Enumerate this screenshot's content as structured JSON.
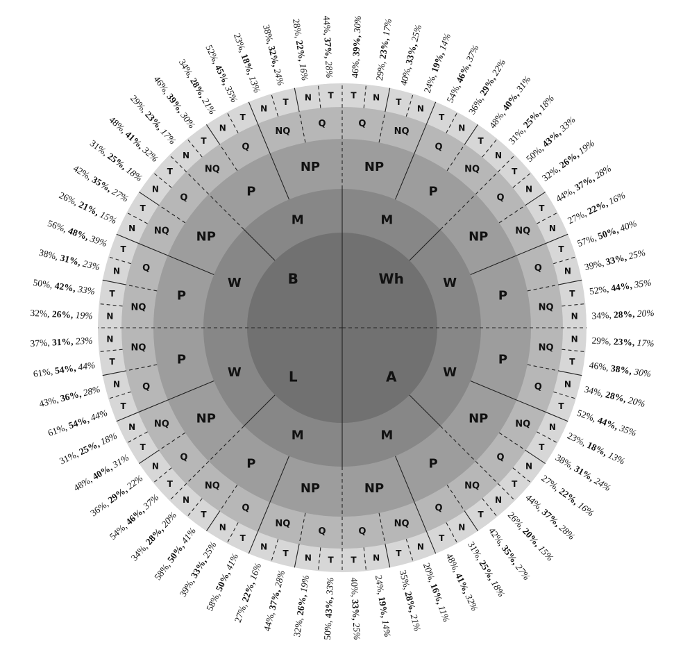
{
  "colors": {
    "center": "#717171",
    "ring1": "#878787",
    "ring2": "#9d9d9d",
    "ring3": "#b7b7b7",
    "ring4": "#d7d7d7",
    "stroke": "#222222"
  },
  "quadrants": [
    {
      "label": "Wh",
      "ring1": [
        "M",
        "W"
      ],
      "ring2": [
        "NP",
        "P",
        "NP",
        "P"
      ],
      "ring3": [
        "Q",
        "NQ",
        "Q",
        "NQ",
        "Q",
        "NQ",
        "Q",
        "NQ"
      ],
      "ring4": [
        "T",
        "N",
        "T",
        "N",
        "T",
        "N",
        "T",
        "N",
        "T",
        "N",
        "T",
        "N",
        "T",
        "N",
        "T",
        "N"
      ]
    },
    {
      "label": "A",
      "ring1": [
        "W",
        "M"
      ],
      "ring2": [
        "P",
        "NP",
        "P",
        "NP"
      ],
      "ring3": [
        "NQ",
        "Q",
        "NQ",
        "Q",
        "NQ",
        "Q",
        "NQ",
        "Q"
      ],
      "ring4": [
        "N",
        "T",
        "N",
        "T",
        "N",
        "T",
        "N",
        "T",
        "N",
        "T",
        "N",
        "T",
        "N",
        "T",
        "N",
        "T"
      ]
    },
    {
      "label": "L",
      "ring1": [
        "M",
        "W"
      ],
      "ring2": [
        "NP",
        "P",
        "NP",
        "P"
      ],
      "ring3": [
        "Q",
        "NQ",
        "Q",
        "NQ",
        "Q",
        "NQ",
        "Q",
        "NQ"
      ],
      "ring4": [
        "T",
        "N",
        "T",
        "N",
        "T",
        "N",
        "T",
        "N",
        "T",
        "N",
        "T",
        "N",
        "T",
        "N",
        "T",
        "N"
      ]
    },
    {
      "label": "B",
      "ring1": [
        "W",
        "M"
      ],
      "ring2": [
        "P",
        "NP",
        "P",
        "NP"
      ],
      "ring3": [
        "NQ",
        "Q",
        "NQ",
        "Q",
        "NQ",
        "Q",
        "NQ",
        "Q"
      ],
      "ring4": [
        "N",
        "T",
        "N",
        "T",
        "N",
        "T",
        "N",
        "T",
        "N",
        "T",
        "N",
        "T",
        "N",
        "T",
        "N",
        "T"
      ]
    }
  ],
  "outer_labels": [
    [
      "46%",
      "39%",
      "30%"
    ],
    [
      "29%",
      "23%",
      "17%"
    ],
    [
      "40%",
      "33%",
      "25%"
    ],
    [
      "24%",
      "19%",
      "14%"
    ],
    [
      "54%",
      "46%",
      "37%"
    ],
    [
      "36%",
      "29%",
      "22%"
    ],
    [
      "48%",
      "40%",
      "31%"
    ],
    [
      "31%",
      "25%",
      "18%"
    ],
    [
      "50%",
      "43%",
      "33%"
    ],
    [
      "32%",
      "26%",
      "19%"
    ],
    [
      "44%",
      "37%",
      "28%"
    ],
    [
      "27%",
      "22%",
      "16%"
    ],
    [
      "57%",
      "50%",
      "40%"
    ],
    [
      "39%",
      "33%",
      "25%"
    ],
    [
      "52%",
      "44%",
      "35%"
    ],
    [
      "34%",
      "28%",
      "20%"
    ],
    [
      "29%",
      "23%",
      "17%"
    ],
    [
      "46%",
      "38%",
      "30%"
    ],
    [
      "34%",
      "28%",
      "20%"
    ],
    [
      "52%",
      "44%",
      "35%"
    ],
    [
      "23%",
      "18%",
      "13%"
    ],
    [
      "38%",
      "31%",
      "24%"
    ],
    [
      "27%",
      "22%",
      "16%"
    ],
    [
      "44%",
      "37%",
      "28%"
    ],
    [
      "26%",
      "20%",
      "15%"
    ],
    [
      "42%",
      "35%",
      "27%"
    ],
    [
      "31%",
      "25%",
      "18%"
    ],
    [
      "48%",
      "41%",
      "32%"
    ],
    [
      "20%",
      "16%",
      "11%"
    ],
    [
      "35%",
      "28%",
      "21%"
    ],
    [
      "24%",
      "19%",
      "14%"
    ],
    [
      "40%",
      "33%",
      "25%"
    ],
    [
      "50%",
      "43%",
      "33%"
    ],
    [
      "32%",
      "26%",
      "19%"
    ],
    [
      "44%",
      "37%",
      "28%"
    ],
    [
      "27%",
      "22%",
      "16%"
    ],
    [
      "58%",
      "50%",
      "41%"
    ],
    [
      "39%",
      "33%",
      "25%"
    ],
    [
      "58%",
      "50%",
      "41%"
    ],
    [
      "34%",
      "28%",
      "20%"
    ],
    [
      "54%",
      "46%",
      "37%"
    ],
    [
      "36%",
      "29%",
      "22%"
    ],
    [
      "48%",
      "40%",
      "31%"
    ],
    [
      "31%",
      "25%",
      "18%"
    ],
    [
      "61%",
      "54%",
      "44%"
    ],
    [
      "43%",
      "36%",
      "28%"
    ],
    [
      "61%",
      "54%",
      "44%"
    ],
    [
      "37%",
      "31%",
      "23%"
    ],
    [
      "32%",
      "26%",
      "19%"
    ],
    [
      "50%",
      "42%",
      "33%"
    ],
    [
      "38%",
      "31%",
      "23%"
    ],
    [
      "56%",
      "48%",
      "39%"
    ],
    [
      "26%",
      "21%",
      "15%"
    ],
    [
      "42%",
      "35%",
      "27%"
    ],
    [
      "31%",
      "25%",
      "18%"
    ],
    [
      "48%",
      "41%",
      "32%"
    ],
    [
      "29%",
      "23%",
      "17%"
    ],
    [
      "46%",
      "39%",
      "30%"
    ],
    [
      "34%",
      "28%",
      "21%"
    ],
    [
      "52%",
      "45%",
      "35%"
    ],
    [
      "23%",
      "18%",
      "13%"
    ],
    [
      "38%",
      "32%",
      "24%"
    ],
    [
      "28%",
      "22%",
      "16%"
    ],
    [
      "44%",
      "37%",
      "28%"
    ]
  ]
}
